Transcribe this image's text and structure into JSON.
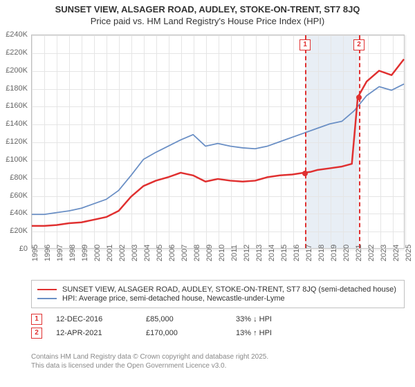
{
  "title": "SUNSET VIEW, ALSAGER ROAD, AUDLEY, STOKE-ON-TRENT, ST7 8JQ",
  "subtitle": "Price paid vs. HM Land Registry's House Price Index (HPI)",
  "chart": {
    "type": "line",
    "background_color": "#ffffff",
    "grid_color": "#e5e5e5",
    "border_color": "#c0c0c0",
    "y": {
      "min": 0,
      "max": 240000,
      "step": 20000,
      "label_prefix": "£",
      "label_suffix": "K",
      "label_divisor": 1000
    },
    "x": {
      "min": 1995,
      "max": 2025,
      "step": 1
    },
    "marker_band": {
      "from": 2016.95,
      "to": 2021.28,
      "color": "#e8eef5"
    },
    "series": [
      {
        "name": "SUNSET VIEW, ALSAGER ROAD, AUDLEY, STOKE-ON-TRENT, ST7 8JQ (semi-detached house)",
        "color": "#e03030",
        "line_width": 2.5,
        "points": [
          [
            1995,
            25000
          ],
          [
            1996,
            25000
          ],
          [
            1997,
            26000
          ],
          [
            1998,
            28000
          ],
          [
            1999,
            29000
          ],
          [
            2000,
            32000
          ],
          [
            2001,
            35000
          ],
          [
            2002,
            42000
          ],
          [
            2003,
            58000
          ],
          [
            2004,
            70000
          ],
          [
            2005,
            76000
          ],
          [
            2006,
            80000
          ],
          [
            2007,
            85000
          ],
          [
            2008,
            82000
          ],
          [
            2009,
            75000
          ],
          [
            2010,
            78000
          ],
          [
            2011,
            76000
          ],
          [
            2012,
            75000
          ],
          [
            2013,
            76000
          ],
          [
            2014,
            80000
          ],
          [
            2015,
            82000
          ],
          [
            2016,
            83000
          ],
          [
            2016.95,
            85000
          ],
          [
            2017.5,
            86000
          ],
          [
            2018,
            88000
          ],
          [
            2019,
            90000
          ],
          [
            2020,
            92000
          ],
          [
            2020.8,
            95000
          ],
          [
            2021.28,
            170000
          ],
          [
            2022,
            188000
          ],
          [
            2023,
            200000
          ],
          [
            2024,
            195000
          ],
          [
            2025,
            213000
          ]
        ]
      },
      {
        "name": "HPI: Average price, semi-detached house, Newcastle-under-Lyme",
        "color": "#6a8fc5",
        "line_width": 1.8,
        "points": [
          [
            1995,
            38000
          ],
          [
            1996,
            38000
          ],
          [
            1997,
            40000
          ],
          [
            1998,
            42000
          ],
          [
            1999,
            45000
          ],
          [
            2000,
            50000
          ],
          [
            2001,
            55000
          ],
          [
            2002,
            65000
          ],
          [
            2003,
            82000
          ],
          [
            2004,
            100000
          ],
          [
            2005,
            108000
          ],
          [
            2006,
            115000
          ],
          [
            2007,
            122000
          ],
          [
            2008,
            128000
          ],
          [
            2009,
            115000
          ],
          [
            2010,
            118000
          ],
          [
            2011,
            115000
          ],
          [
            2012,
            113000
          ],
          [
            2013,
            112000
          ],
          [
            2014,
            115000
          ],
          [
            2015,
            120000
          ],
          [
            2016,
            125000
          ],
          [
            2017,
            130000
          ],
          [
            2018,
            135000
          ],
          [
            2019,
            140000
          ],
          [
            2020,
            143000
          ],
          [
            2021,
            155000
          ],
          [
            2022,
            172000
          ],
          [
            2023,
            182000
          ],
          [
            2024,
            178000
          ],
          [
            2025,
            185000
          ]
        ]
      }
    ],
    "markers": [
      {
        "id": "1",
        "x": 2016.95,
        "y": 85000,
        "color": "#e03030",
        "date": "12-DEC-2016",
        "price": "£85,000",
        "delta": "33% ↓ HPI"
      },
      {
        "id": "2",
        "x": 2021.28,
        "y": 170000,
        "color": "#e03030",
        "date": "12-APR-2021",
        "price": "£170,000",
        "delta": "13% ↑ HPI"
      }
    ]
  },
  "legend_title_fontsize": 11,
  "footer": {
    "line1": "Contains HM Land Registry data © Crown copyright and database right 2025.",
    "line2": "This data is licensed under the Open Government Licence v3.0."
  }
}
